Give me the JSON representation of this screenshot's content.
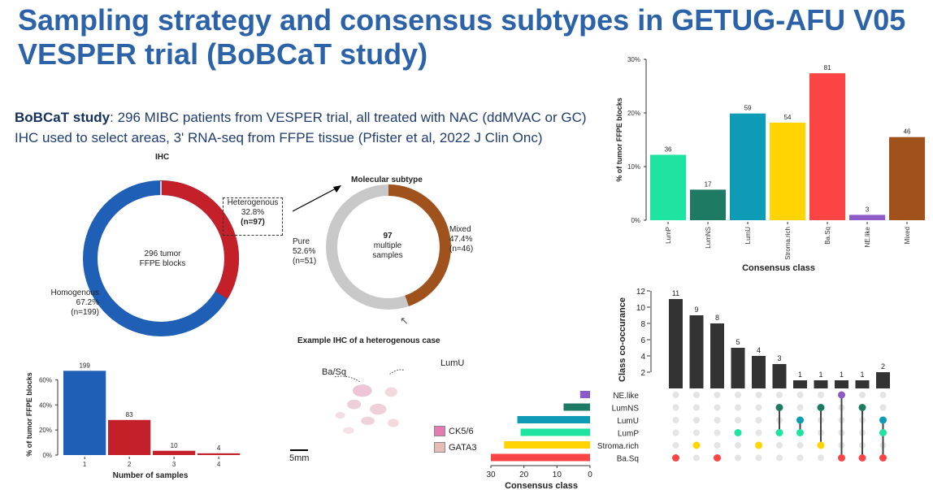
{
  "slide": {
    "title": "Sampling strategy and consensus subtypes in GETUG-AFU V05 VESPER trial (BoBCaT study)",
    "study_label": "BoBCaT study",
    "study_text": ": 296 MIBC patients from VESPER trial, all treated with NAC (ddMVAC or GC)",
    "line3": "IHC used to select areas, 3' RNA-seq from FFPE tissue (Pfister et al, 2022 J Clin Onc)"
  },
  "ihc_donut": {
    "title": "IHC",
    "center_line1": "296 tumor",
    "center_line2": "FFPE blocks",
    "homo_label": "Homogenous",
    "homo_pct": "67.2%",
    "homo_n": "(n=199)",
    "hetero_label": "Heterogenous",
    "hetero_pct": "32.8%",
    "hetero_n": "(n=97)",
    "colors": {
      "homogenous": "#1f5fb5",
      "heterogenous": "#c3202a"
    }
  },
  "molecular_donut": {
    "title": "Molecular subtype",
    "center_line1": "97",
    "center_line2": "multiple",
    "center_line3": "samples",
    "pure_label": "Pure",
    "pure_pct": "52.6%",
    "pure_n": "(n=51)",
    "mixed_label": "Mixed",
    "mixed_pct": "47.4%",
    "mixed_n": "(n=46)",
    "colors": {
      "pure": "#c8c8c8",
      "mixed": "#a0521d"
    }
  },
  "ihc_example": {
    "title": "Example IHC of a heterogenous case",
    "label_basq": "Ba/Sq",
    "label_lumu": "LumU",
    "scale": "5mm",
    "legend": [
      {
        "label": "CK5/6",
        "color": "#e47bb0"
      },
      {
        "label": "GATA3",
        "color": "#e7bcb6"
      }
    ]
  },
  "chart_data": [
    {
      "type": "bar",
      "title": "",
      "xlabel": "Number of samples",
      "ylabel": "% of tumor FFPE blocks",
      "categories": [
        "1",
        "2",
        "3",
        "4"
      ],
      "values": [
        67.2,
        28.0,
        3.4,
        1.4
      ],
      "labels": [
        "199",
        "83",
        "10",
        "4"
      ],
      "colors": [
        "#1f5fb5",
        "#c3202a",
        "#c3202a",
        "#c3202a"
      ],
      "yticks": [
        "0%",
        "20%",
        "40%",
        "60%"
      ],
      "ylim": [
        0,
        70
      ]
    },
    {
      "type": "bar",
      "title": "",
      "xlabel": "Consensus class",
      "ylabel": "% of tumor FFPE blocks",
      "categories": [
        "LumP",
        "LumNS",
        "LumU",
        "Stroma.rich",
        "Ba.Sq",
        "NE.like",
        "Mixed"
      ],
      "values": [
        12.2,
        5.7,
        19.9,
        18.2,
        27.4,
        1.0,
        15.5
      ],
      "labels": [
        "36",
        "17",
        "59",
        "54",
        "81",
        "3",
        "46"
      ],
      "colors": [
        "#1ee3a1",
        "#1f7a63",
        "#0d9bb5",
        "#ffd400",
        "#fb4545",
        "#8d5ac7",
        "#a0521d"
      ],
      "yticks": [
        "0%",
        "10%",
        "20%",
        "30%"
      ],
      "ylim": [
        0,
        30
      ]
    },
    {
      "type": "bar",
      "title": "",
      "xlabel": "",
      "ylabel": "Class co-occurance",
      "categories": [
        "c1",
        "c2",
        "c3",
        "c4",
        "c5",
        "c6",
        "c7",
        "c8",
        "c9",
        "c10",
        "c11"
      ],
      "values": [
        11,
        9,
        8,
        5,
        4,
        3,
        1,
        1,
        1,
        1,
        2
      ],
      "yticks": [
        "2",
        "4",
        "6",
        "8",
        "10",
        "12"
      ],
      "ylim": [
        0,
        12
      ],
      "sets": [
        "NE.like",
        "LumNS",
        "LumU",
        "LumP",
        "Stroma.rich",
        "Ba.Sq"
      ],
      "set_colors": [
        "#8d5ac7",
        "#1f7a63",
        "#0d9bb5",
        "#1ee3a1",
        "#ffd400",
        "#fb4545"
      ],
      "set_sizes": [
        3,
        8,
        22,
        21,
        26,
        30
      ],
      "set_xlabel": "Consensus class",
      "set_xticks": [
        "30",
        "20",
        "10",
        "0"
      ],
      "set_xlim": [
        0,
        30
      ],
      "combinations": [
        [
          "Ba.Sq"
        ],
        [
          "Stroma.rich"
        ],
        [
          "Ba.Sq"
        ],
        [
          "LumP"
        ],
        [
          "Stroma.rich"
        ],
        [
          "LumP",
          "LumNS"
        ],
        [
          "LumP",
          "LumU"
        ],
        [
          "Stroma.rich",
          "LumNS"
        ],
        [
          "Ba.Sq",
          "NE.like"
        ],
        [
          "Ba.Sq",
          "LumNS"
        ],
        [
          "Ba.Sq",
          "LumP",
          "LumU"
        ]
      ]
    }
  ]
}
